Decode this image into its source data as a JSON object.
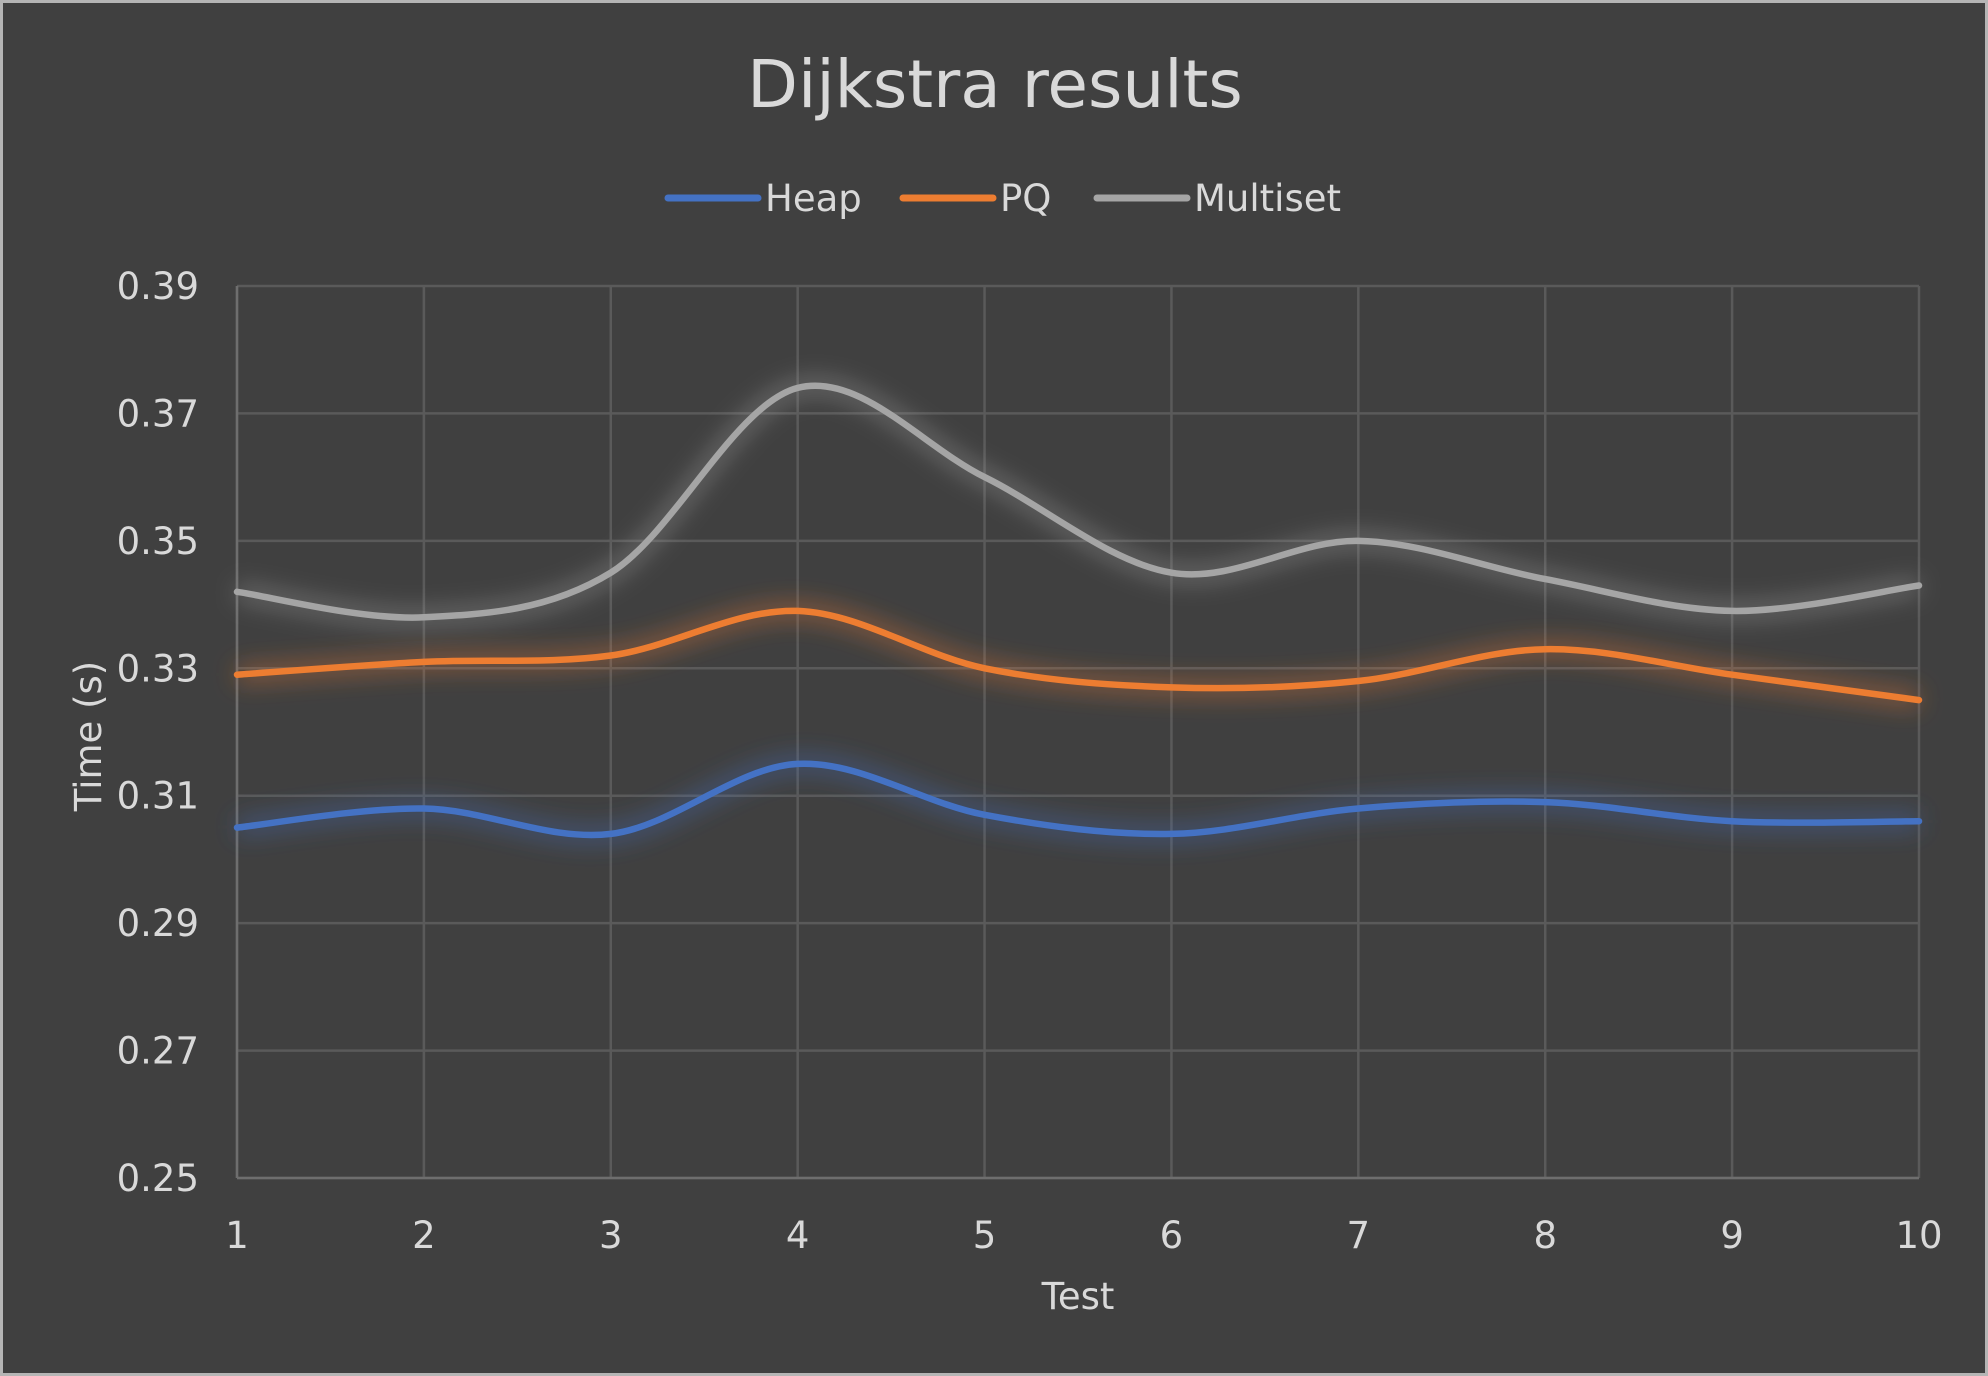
{
  "chart_data": {
    "type": "line",
    "title": "Dijkstra results",
    "xlabel": "Test",
    "ylabel": "Time (s)",
    "x": [
      1,
      2,
      3,
      4,
      5,
      6,
      7,
      8,
      9,
      10
    ],
    "x_tick_labels": [
      "1",
      "2",
      "3",
      "4",
      "5",
      "6",
      "7",
      "8",
      "9",
      "10"
    ],
    "ylim": [
      0.25,
      0.39
    ],
    "y_ticks": [
      0.25,
      0.27,
      0.29,
      0.31,
      0.33,
      0.35,
      0.37,
      0.39
    ],
    "y_tick_labels": [
      "0.25",
      "0.27",
      "0.29",
      "0.31",
      "0.33",
      "0.35",
      "0.37",
      "0.39"
    ],
    "grid": true,
    "smooth": true,
    "legend_position": "top",
    "background_color": "#404040",
    "series": [
      {
        "name": "Heap",
        "color": "#4472c4",
        "values": [
          0.305,
          0.308,
          0.304,
          0.315,
          0.307,
          0.304,
          0.308,
          0.309,
          0.306,
          0.306
        ]
      },
      {
        "name": "PQ",
        "color": "#ed7d31",
        "values": [
          0.329,
          0.331,
          0.332,
          0.339,
          0.33,
          0.327,
          0.328,
          0.333,
          0.329,
          0.325
        ]
      },
      {
        "name": "Multiset",
        "color": "#a5a5a5",
        "values": [
          0.342,
          0.338,
          0.345,
          0.374,
          0.36,
          0.345,
          0.35,
          0.344,
          0.339,
          0.343
        ]
      }
    ]
  }
}
